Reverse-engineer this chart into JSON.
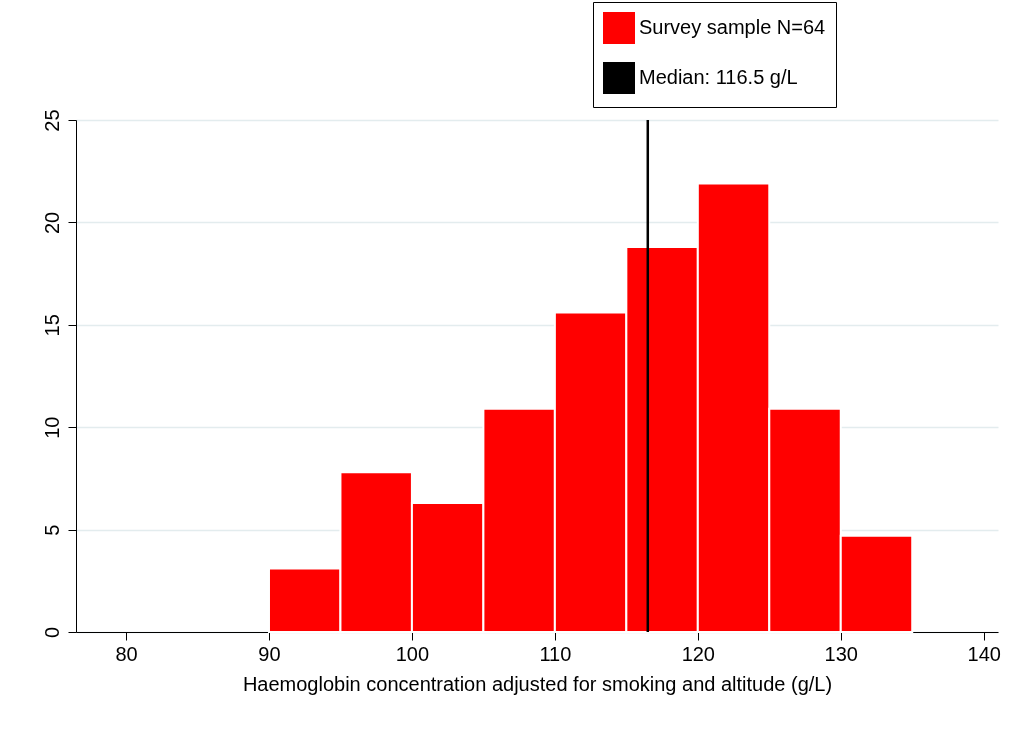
{
  "chart_data": {
    "type": "histogram",
    "xlabel": "Haemoglobin concentration adjusted for smoking and altitude (g/L)",
    "bins": [
      90,
      95,
      100,
      105,
      110,
      115,
      120,
      125,
      130,
      135
    ],
    "series": [
      {
        "name": "Survey sample N=64",
        "color": "#ff0000",
        "values": [
          3.1,
          7.8,
          6.3,
          10.9,
          15.6,
          18.8,
          21.9,
          10.9,
          4.7
        ]
      }
    ],
    "ref_lines": [
      {
        "axis": "x",
        "value": 116.5,
        "label": "Median: 116.5 g/L",
        "color": "#000000"
      }
    ],
    "xlim": [
      76.5,
      141
    ],
    "xticks": [
      80,
      90,
      100,
      110,
      120,
      130,
      140
    ],
    "ylim": [
      0,
      25
    ],
    "yticks": [
      0,
      5,
      10,
      15,
      20,
      25
    ],
    "grid": "y",
    "legend": "top right"
  }
}
